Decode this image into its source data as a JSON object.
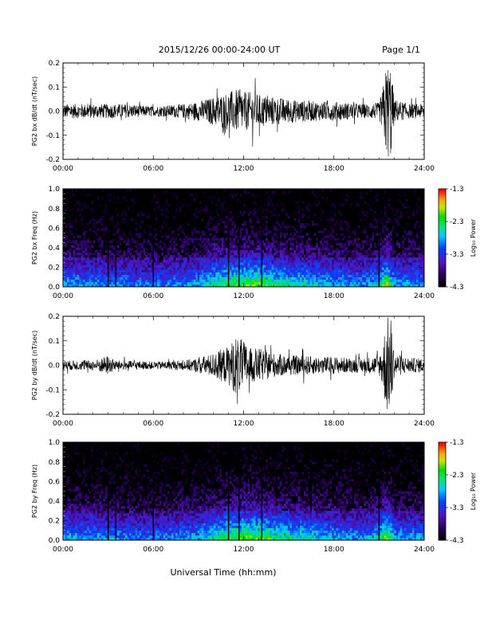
{
  "header": {
    "title": "2015/12/26  00:00-24:00 UT",
    "page": "Page 1/1"
  },
  "chart_data": [
    {
      "type": "line",
      "ylabel": "PG2 bx dB/dt (nT/sec)",
      "xlim": [
        0,
        24
      ],
      "ylim": [
        -0.2,
        0.2
      ],
      "xticks": [
        "00:00",
        "06:00",
        "12:00",
        "18:00",
        "24:00"
      ],
      "yticks": [
        "-0.2",
        "-0.1",
        "0.0",
        "0.1",
        "0.2"
      ],
      "envelope": {
        "hours": [
          0,
          2,
          4,
          6,
          8,
          9,
          10,
          11,
          11.5,
          12,
          12.5,
          13,
          14,
          15,
          16,
          17,
          18,
          19,
          20,
          21,
          21.2,
          21.5,
          21.8,
          22,
          23,
          24
        ],
        "amplitude": [
          0.03,
          0.03,
          0.03,
          0.02,
          0.03,
          0.04,
          0.06,
          0.08,
          0.09,
          0.08,
          0.08,
          0.07,
          0.06,
          0.05,
          0.045,
          0.04,
          0.04,
          0.035,
          0.03,
          0.035,
          0.08,
          0.2,
          0.2,
          0.05,
          0.03,
          0.03
        ]
      }
    },
    {
      "type": "heatmap",
      "ylabel": "PG2 bx Freq (Hz)",
      "xlim": [
        0,
        24
      ],
      "ylim": [
        0,
        1
      ],
      "xticks": [
        "00:00",
        "06:00",
        "12:00",
        "18:00",
        "24:00"
      ],
      "yticks": [
        "0.0",
        "0.2",
        "0.4",
        "0.6",
        "0.8",
        "1.0"
      ],
      "colorbar": {
        "label": "Log₁₀ Power",
        "range": [
          -4.3,
          -1.3
        ],
        "ticks": [
          "-1.3",
          "-2.3",
          "-3.3",
          "-4.3"
        ]
      },
      "vertical_lines_hours": [
        3.0,
        3.5,
        6.0,
        11.0,
        11.7,
        13.2,
        21.0
      ]
    },
    {
      "type": "line",
      "ylabel": "PG2 by dB/dt (nT/sec)",
      "xlim": [
        0,
        24
      ],
      "ylim": [
        -0.2,
        0.2
      ],
      "xticks": [
        "00:00",
        "06:00",
        "12:00",
        "18:00",
        "24:00"
      ],
      "yticks": [
        "-0.2",
        "-0.1",
        "0.0",
        "0.1",
        "0.2"
      ],
      "envelope": {
        "hours": [
          0,
          2,
          3,
          3.5,
          4,
          6,
          8,
          9,
          10,
          11,
          11.5,
          12,
          12.5,
          13,
          14,
          15,
          16,
          17,
          18,
          19,
          20,
          21,
          21.2,
          21.5,
          21.8,
          22,
          23,
          24
        ],
        "amplitude": [
          0.02,
          0.02,
          0.04,
          0.02,
          0.02,
          0.015,
          0.02,
          0.03,
          0.05,
          0.08,
          0.12,
          0.1,
          0.07,
          0.07,
          0.05,
          0.04,
          0.04,
          0.035,
          0.035,
          0.03,
          0.03,
          0.04,
          0.08,
          0.2,
          0.2,
          0.05,
          0.03,
          0.03
        ]
      }
    },
    {
      "type": "heatmap",
      "ylabel": "PG2 by Freq (Hz)",
      "xlim": [
        0,
        24
      ],
      "ylim": [
        0,
        1
      ],
      "xticks": [
        "00:00",
        "06:00",
        "12:00",
        "18:00",
        "24:00"
      ],
      "yticks": [
        "0.0",
        "0.2",
        "0.4",
        "0.6",
        "0.8",
        "1.0"
      ],
      "colorbar": {
        "label": "Log₁₀ Power",
        "range": [
          -4.3,
          -1.3
        ],
        "ticks": [
          "-1.3",
          "-2.3",
          "-3.3",
          "-4.3"
        ]
      },
      "vertical_lines_hours": [
        3.0,
        3.5,
        6.0,
        11.0,
        11.7,
        13.2,
        21.0
      ]
    }
  ],
  "footer": {
    "xlabel": "Universal Time (hh:mm)"
  }
}
